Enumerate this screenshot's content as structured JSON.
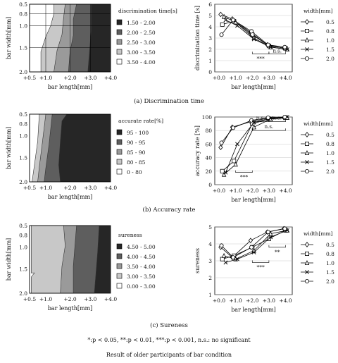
{
  "legend_titles": {
    "width": "width[mm]"
  },
  "captions": {
    "a": "(a) Discrimination time",
    "b": "(b) Accuracy rate",
    "c": "(c) Sureness"
  },
  "significance_note": "*:p < 0.05,  **:p < 0.01, ***:p < 0.001, n.s.: no significant",
  "figure_title": "Result of older participants of bar condition",
  "colors": {
    "level1": "#ffffff",
    "level2": "#c8c8c8",
    "level3": "#9a9a9a",
    "level4": "#5e5e5e",
    "level5": "#262626"
  },
  "chart_data": [
    {
      "id": "a-contour",
      "type": "heatmap",
      "xlabel": "bar length[mm]",
      "ylabel": "bar width[mm]",
      "xticks": [
        "+0.5",
        "+1.0",
        "+2.0",
        "+3.0",
        "+4.0"
      ],
      "yticks": [
        "0.5",
        "0.8",
        "1.0",
        "1.5",
        "2.0"
      ],
      "legend_title": "discrimination time[s]",
      "legend": [
        "1.50 - 2.00",
        "2.00 - 2.50",
        "2.50 - 3.00",
        "3.00 - 3.50",
        "3.50 - 4.00"
      ],
      "legend_color_levels": [
        5,
        4,
        3,
        2,
        1
      ],
      "grid": true
    },
    {
      "id": "a-line",
      "type": "line",
      "x": [
        0,
        1,
        2,
        3,
        4
      ],
      "xticks": [
        "+0.0",
        "+1.0",
        "+2.0",
        "+3.0",
        "+4.0"
      ],
      "xlabel": "bar length[mm]",
      "ylabel": "discrimination time [s]",
      "ylim": [
        0,
        6
      ],
      "yticks": [
        0,
        1,
        2,
        3,
        4,
        5,
        6
      ],
      "series": [
        {
          "name": "0.5",
          "marker": "diamond",
          "x": [
            0.1,
            0.8,
            1.9,
            2.9,
            3.9
          ],
          "values": [
            5.1,
            4.7,
            3.5,
            2.4,
            2.1
          ]
        },
        {
          "name": "0.8",
          "marker": "square",
          "x": [
            0.2,
            0.9,
            2.0,
            3.0,
            4.0
          ],
          "values": [
            4.2,
            4.5,
            3.3,
            2.3,
            2.1
          ]
        },
        {
          "name": "1.0",
          "marker": "triangle",
          "x": [
            0.3,
            1.0,
            2.1,
            3.1,
            4.1
          ],
          "values": [
            4.9,
            4.4,
            3.0,
            2.2,
            2.0
          ]
        },
        {
          "name": "1.5",
          "marker": "x",
          "x": [
            0.4,
            1.1,
            2.1,
            3.1,
            4.1
          ],
          "values": [
            4.6,
            4.1,
            2.9,
            2.2,
            2.0
          ]
        },
        {
          "name": "2.0",
          "marker": "circle",
          "x": [
            0.15,
            0.85,
            1.95,
            2.95,
            3.95
          ],
          "values": [
            3.3,
            4.6,
            3.6,
            2.4,
            2.2
          ]
        }
      ],
      "annotations": [
        "***",
        "n.s."
      ]
    },
    {
      "id": "b-contour",
      "type": "heatmap",
      "xlabel": "bar length[mm]",
      "ylabel": "bar width[mm]",
      "xticks": [
        "+0.5",
        "+1.0",
        "+2.0",
        "+3.0",
        "+4.0"
      ],
      "yticks": [
        "0.5",
        "0.8",
        "1.0",
        "1.5",
        "2.0"
      ],
      "legend_title": "accurate rate[%]",
      "legend": [
        "95 - 100",
        "90 - 95",
        "85 - 90",
        "80 - 85",
        "0 - 80"
      ],
      "legend_color_levels": [
        5,
        4,
        3,
        2,
        1
      ],
      "grid": false
    },
    {
      "id": "b-line",
      "type": "line",
      "x": [
        0,
        1,
        2,
        3,
        4
      ],
      "xticks": [
        "+0.0",
        "+1.0",
        "+2.0",
        "+3.0",
        "+4.0"
      ],
      "xlabel": "bar length[mm]",
      "ylabel": "accuracy rate [%]",
      "ylim": [
        0,
        100
      ],
      "yticks": [
        0,
        20,
        40,
        60,
        80,
        100
      ],
      "series": [
        {
          "name": "0.5",
          "marker": "diamond",
          "x": [
            0.1,
            0.8,
            1.9,
            2.9,
            3.9
          ],
          "values": [
            55,
            85,
            93,
            98,
            99
          ]
        },
        {
          "name": "0.8",
          "marker": "square",
          "x": [
            0.2,
            0.9,
            2.0,
            3.0,
            4.0
          ],
          "values": [
            20,
            35,
            90,
            97,
            99
          ]
        },
        {
          "name": "1.0",
          "marker": "triangle",
          "x": [
            0.3,
            1.0,
            2.1,
            3.1,
            4.1
          ],
          "values": [
            15,
            30,
            85,
            97,
            99
          ]
        },
        {
          "name": "1.5",
          "marker": "x",
          "x": [
            0.4,
            1.1,
            2.1,
            3.1,
            4.1
          ],
          "values": [
            18,
            60,
            92,
            98,
            100
          ]
        },
        {
          "name": "2.0",
          "marker": "circle",
          "x": [
            0.15,
            0.85,
            1.95,
            2.95,
            3.95
          ],
          "values": [
            62,
            84,
            95,
            99,
            100
          ]
        }
      ],
      "annotations": [
        "n.s.",
        "n.s.",
        "n.s.",
        "***"
      ]
    },
    {
      "id": "c-contour",
      "type": "heatmap",
      "xlabel": "bar length[mm]",
      "ylabel": "bar width[mm]",
      "xticks": [
        "+0.5",
        "+1.0",
        "+2.0",
        "+3.0",
        "+4.0"
      ],
      "yticks": [
        "0.5",
        "0.8",
        "1.0",
        "1.5",
        "2.0"
      ],
      "legend_title": "sureness",
      "legend": [
        "4.50 - 5.00",
        "4.00 - 4.50",
        "3.50 - 4.00",
        "3.00 - 3.50",
        "0.00 - 3.00"
      ],
      "legend_color_levels": [
        5,
        4,
        3,
        2,
        1
      ],
      "grid": false
    },
    {
      "id": "c-line",
      "type": "line",
      "x": [
        0,
        1,
        2,
        3,
        4
      ],
      "xticks": [
        "+0.0",
        "+1.0",
        "+2.0",
        "+3.0",
        "+4.0"
      ],
      "xlabel": "bar length[mm]",
      "ylabel": "sureness",
      "ylim": [
        1,
        5
      ],
      "yticks": [
        1,
        2,
        3,
        4,
        5
      ],
      "series": [
        {
          "name": "0.5",
          "marker": "diamond",
          "x": [
            0.1,
            0.8,
            1.9,
            2.9,
            3.9
          ],
          "values": [
            3.8,
            3.2,
            4.2,
            4.7,
            4.9
          ]
        },
        {
          "name": "0.8",
          "marker": "square",
          "x": [
            0.2,
            0.9,
            2.0,
            3.0,
            4.0
          ],
          "values": [
            3.1,
            3.3,
            3.8,
            4.3,
            4.8
          ]
        },
        {
          "name": "1.0",
          "marker": "triangle",
          "x": [
            0.3,
            1.0,
            2.1,
            3.1,
            4.1
          ],
          "values": [
            3.3,
            3.1,
            3.6,
            4.6,
            4.8
          ]
        },
        {
          "name": "1.5",
          "marker": "x",
          "x": [
            0.4,
            1.1,
            2.1,
            3.1,
            4.1
          ],
          "values": [
            2.9,
            3.1,
            3.5,
            4.4,
            4.8
          ]
        },
        {
          "name": "2.0",
          "marker": "circle",
          "x": [
            0.15,
            0.85,
            1.95,
            2.95,
            3.95
          ],
          "values": [
            3.9,
            3.2,
            3.8,
            4.7,
            4.9
          ]
        }
      ],
      "annotations": [
        "***",
        "**"
      ]
    }
  ]
}
